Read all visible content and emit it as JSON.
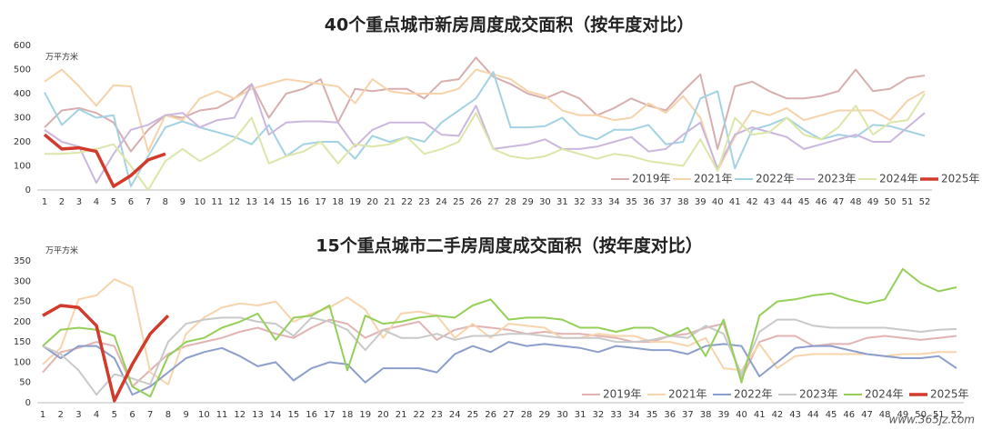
{
  "chart_data": [
    {
      "type": "line",
      "title": "40个重点城市新房周度成交面积（按年度对比）",
      "ylabel": "万平方米",
      "categories": [
        "1",
        "2",
        "3",
        "4",
        "5",
        "6",
        "7",
        "8",
        "9",
        "10",
        "11",
        "12",
        "13",
        "14",
        "15",
        "16",
        "17",
        "18",
        "19",
        "20",
        "21",
        "22",
        "23",
        "24",
        "25",
        "26",
        "27",
        "28",
        "29",
        "30",
        "31",
        "32",
        "33",
        "34",
        "35",
        "36",
        "37",
        "38",
        "39",
        "40",
        "41",
        "42",
        "43",
        "44",
        "45",
        "46",
        "47",
        "48",
        "49",
        "50",
        "51",
        "52"
      ],
      "ylim": [
        0,
        600
      ],
      "yticks": [
        0,
        100,
        200,
        300,
        400,
        500,
        600
      ],
      "grid": false,
      "legend": "lower right",
      "series": [
        {
          "name": "2019年",
          "color": "#d8aeae",
          "values": [
            260,
            330,
            340,
            320,
            280,
            160,
            250,
            310,
            300,
            330,
            340,
            380,
            440,
            300,
            400,
            420,
            460,
            280,
            420,
            410,
            420,
            420,
            380,
            450,
            460,
            550,
            470,
            440,
            400,
            380,
            410,
            380,
            310,
            340,
            380,
            350,
            330,
            410,
            480,
            170,
            430,
            450,
            410,
            380,
            380,
            390,
            410,
            500,
            410,
            420,
            465,
            475
          ]
        },
        {
          "name": "2021年",
          "color": "#f6d3aa",
          "values": [
            450,
            500,
            430,
            350,
            435,
            430,
            160,
            310,
            290,
            380,
            410,
            380,
            420,
            440,
            460,
            450,
            440,
            430,
            360,
            460,
            410,
            400,
            400,
            400,
            420,
            500,
            480,
            460,
            410,
            390,
            330,
            310,
            310,
            290,
            300,
            360,
            320,
            390,
            300,
            80,
            220,
            330,
            310,
            340,
            290,
            310,
            330,
            330,
            330,
            290,
            370,
            410
          ]
        },
        {
          "name": "2022年",
          "color": "#a3d2e2",
          "values": [
            405,
            270,
            335,
            300,
            310,
            15,
            140,
            260,
            285,
            260,
            240,
            220,
            190,
            270,
            140,
            190,
            200,
            200,
            130,
            225,
            200,
            220,
            200,
            280,
            330,
            380,
            490,
            260,
            260,
            265,
            300,
            230,
            210,
            250,
            250,
            270,
            190,
            200,
            380,
            410,
            90,
            250,
            270,
            300,
            250,
            210,
            230,
            220,
            270,
            265,
            245,
            225
          ]
        },
        {
          "name": "2023年",
          "color": "#cbb7dd",
          "values": [
            250,
            200,
            180,
            30,
            150,
            250,
            270,
            310,
            320,
            260,
            290,
            300,
            440,
            230,
            280,
            285,
            285,
            280,
            180,
            250,
            280,
            280,
            280,
            230,
            225,
            350,
            170,
            180,
            190,
            210,
            170,
            170,
            180,
            200,
            220,
            160,
            170,
            230,
            280,
            90,
            230,
            260,
            240,
            220,
            170,
            190,
            210,
            230,
            200,
            200,
            260,
            320
          ]
        },
        {
          "name": "2024年",
          "color": "#dce6a8",
          "values": [
            150,
            150,
            155,
            170,
            190,
            100,
            0,
            120,
            170,
            120,
            160,
            210,
            300,
            110,
            140,
            160,
            200,
            110,
            190,
            180,
            190,
            220,
            150,
            170,
            200,
            320,
            170,
            140,
            130,
            140,
            170,
            150,
            130,
            150,
            140,
            120,
            110,
            100,
            210,
            80,
            300,
            230,
            240,
            300,
            230,
            210,
            260,
            350,
            230,
            280,
            290,
            400
          ]
        },
        {
          "name": "2025年",
          "color": "#d23a2b",
          "values": [
            230,
            170,
            175,
            160,
            15,
            60,
            125,
            150,
            null,
            null,
            null,
            null,
            null,
            null,
            null,
            null,
            null,
            null,
            null,
            null,
            null,
            null,
            null,
            null,
            null,
            null,
            null,
            null,
            null,
            null,
            null,
            null,
            null,
            null,
            null,
            null,
            null,
            null,
            null,
            null,
            null,
            null,
            null,
            null,
            null,
            null,
            null,
            null,
            null,
            null,
            null,
            null
          ]
        }
      ]
    },
    {
      "type": "line",
      "title": "15个重点城市二手房周度成交面积（按年度对比）",
      "ylabel": "万平方米",
      "categories": [
        "1",
        "2",
        "3",
        "4",
        "5",
        "6",
        "7",
        "8",
        "9",
        "10",
        "11",
        "12",
        "13",
        "14",
        "15",
        "16",
        "17",
        "18",
        "19",
        "20",
        "21",
        "22",
        "23",
        "24",
        "25",
        "26",
        "27",
        "28",
        "29",
        "30",
        "31",
        "32",
        "33",
        "34",
        "35",
        "36",
        "37",
        "38",
        "39",
        "40",
        "41",
        "42",
        "43",
        "44",
        "45",
        "46",
        "47",
        "48",
        "49",
        "50",
        "51",
        "52"
      ],
      "ylim": [
        0,
        350
      ],
      "yticks": [
        0,
        50,
        100,
        150,
        200,
        250,
        300,
        350
      ],
      "grid": false,
      "legend": "lower right",
      "series": [
        {
          "name": "2019年",
          "color": "#e2b3b3",
          "values": [
            75,
            125,
            135,
            150,
            140,
            40,
            80,
            120,
            140,
            150,
            160,
            175,
            185,
            170,
            160,
            185,
            205,
            195,
            160,
            180,
            190,
            200,
            155,
            180,
            190,
            185,
            180,
            170,
            175,
            170,
            170,
            165,
            160,
            150,
            150,
            165,
            170,
            185,
            195,
            60,
            150,
            165,
            165,
            140,
            145,
            145,
            160,
            165,
            160,
            155,
            160,
            165
          ]
        },
        {
          "name": "2021年",
          "color": "#f7d4ab",
          "values": [
            95,
            135,
            255,
            265,
            305,
            285,
            75,
            45,
            170,
            210,
            235,
            245,
            240,
            250,
            200,
            220,
            235,
            260,
            230,
            160,
            220,
            225,
            215,
            160,
            195,
            160,
            195,
            190,
            185,
            160,
            160,
            170,
            165,
            165,
            150,
            150,
            140,
            160,
            85,
            80,
            145,
            85,
            115,
            120,
            120,
            120,
            120,
            115,
            120,
            120,
            125,
            125
          ]
        },
        {
          "name": "2022年",
          "color": "#8c9ecb",
          "values": [
            140,
            110,
            140,
            140,
            110,
            20,
            40,
            75,
            110,
            125,
            135,
            115,
            90,
            100,
            55,
            85,
            100,
            95,
            50,
            85,
            85,
            85,
            75,
            120,
            140,
            125,
            150,
            140,
            145,
            140,
            135,
            125,
            140,
            135,
            130,
            130,
            120,
            140,
            145,
            140,
            65,
            100,
            135,
            140,
            140,
            130,
            120,
            115,
            110,
            110,
            115,
            85
          ]
        },
        {
          "name": "2023年",
          "color": "#c9c9c9",
          "values": [
            140,
            120,
            80,
            20,
            70,
            60,
            45,
            150,
            195,
            205,
            210,
            210,
            200,
            195,
            165,
            210,
            200,
            180,
            130,
            180,
            160,
            160,
            170,
            155,
            165,
            165,
            170,
            170,
            165,
            160,
            160,
            160,
            150,
            150,
            155,
            165,
            160,
            190,
            170,
            70,
            175,
            205,
            205,
            190,
            185,
            185,
            185,
            185,
            180,
            175,
            180,
            182
          ]
        },
        {
          "name": "2024年",
          "color": "#94cf58",
          "values": [
            140,
            180,
            185,
            180,
            165,
            40,
            15,
            115,
            150,
            160,
            185,
            200,
            220,
            155,
            210,
            215,
            240,
            80,
            215,
            195,
            200,
            210,
            215,
            210,
            240,
            255,
            205,
            210,
            210,
            205,
            185,
            185,
            175,
            185,
            185,
            165,
            185,
            115,
            205,
            50,
            215,
            250,
            255,
            265,
            270,
            255,
            245,
            255,
            330,
            295,
            275,
            285
          ]
        },
        {
          "name": "2025年",
          "color": "#d23a2b",
          "values": [
            215,
            240,
            235,
            190,
            5,
            95,
            170,
            215,
            null,
            null,
            null,
            null,
            null,
            null,
            null,
            null,
            null,
            null,
            null,
            null,
            null,
            null,
            null,
            null,
            null,
            null,
            null,
            null,
            null,
            null,
            null,
            null,
            null,
            null,
            null,
            null,
            null,
            null,
            null,
            null,
            null,
            null,
            null,
            null,
            null,
            null,
            null,
            null,
            null,
            null,
            null,
            null
          ]
        }
      ]
    }
  ],
  "watermark": "www.365jz.com"
}
